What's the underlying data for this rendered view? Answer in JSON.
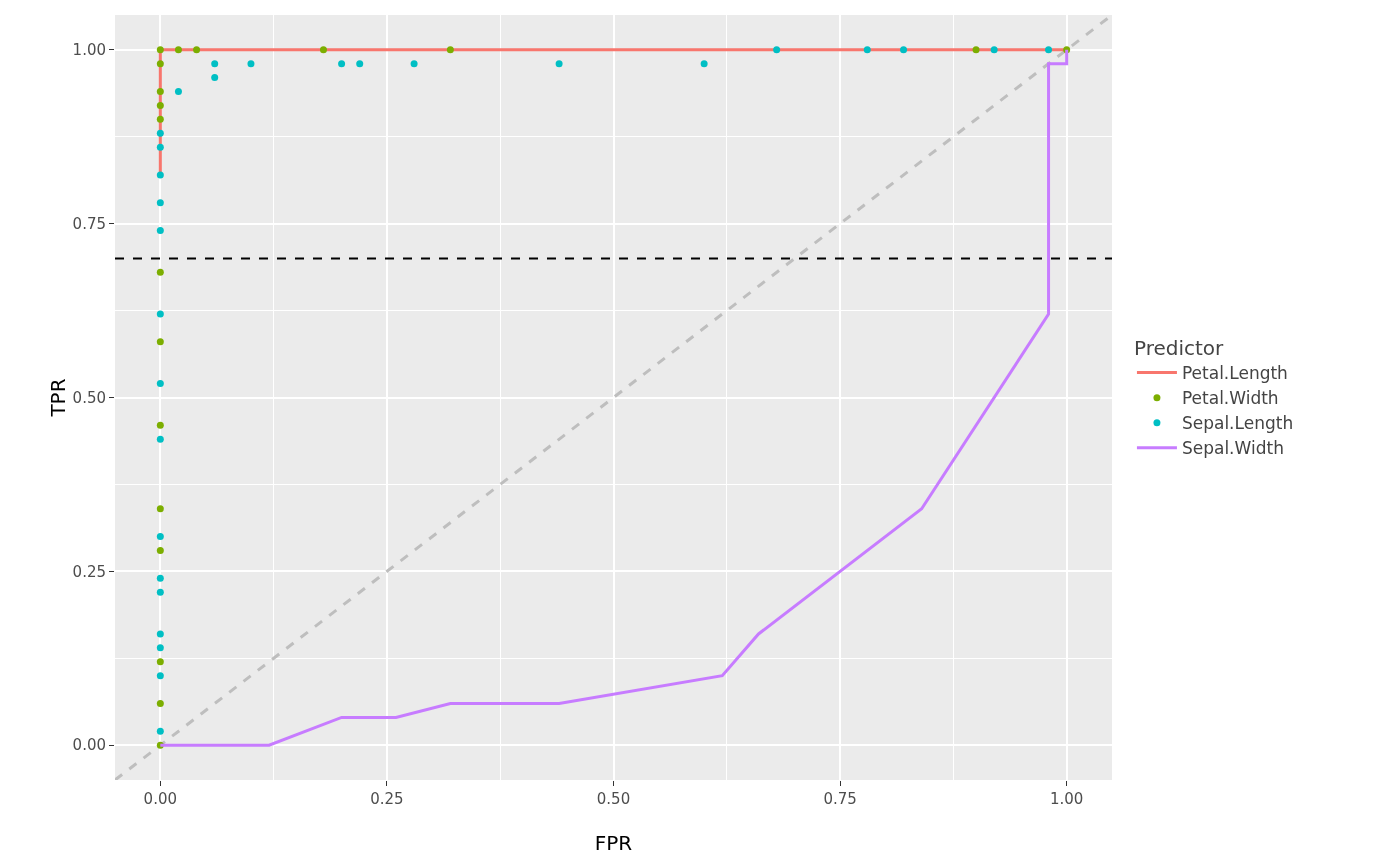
{
  "chart_data": {
    "type": "line",
    "xlabel": "FPR",
    "ylabel": "TPR",
    "legend_title": "Predictor",
    "legend": "right",
    "grid": true,
    "xlim": [
      -0.05,
      1.05
    ],
    "ylim": [
      -0.05,
      1.05
    ],
    "xticks": [
      {
        "value": 0,
        "label": "0.00"
      },
      {
        "value": 0.25,
        "label": "0.25"
      },
      {
        "value": 0.5,
        "label": "0.50"
      },
      {
        "value": 0.75,
        "label": "0.75"
      },
      {
        "value": 1,
        "label": "1.00"
      }
    ],
    "yticks": [
      {
        "value": 0,
        "label": "0.00"
      },
      {
        "value": 0.25,
        "label": "0.25"
      },
      {
        "value": 0.5,
        "label": "0.50"
      },
      {
        "value": 0.75,
        "label": "0.75"
      },
      {
        "value": 1,
        "label": "1.00"
      }
    ],
    "ref_lines": [
      {
        "axis": "y",
        "value": 0.7,
        "color": "#000000",
        "line_style": "dashed"
      }
    ],
    "series": [
      {
        "type": "line",
        "x": [
          -0.05,
          1.05
        ],
        "values": [
          -0.05,
          1.05
        ],
        "color": "#bebebe",
        "line_style": "dashed"
      },
      {
        "name": "Petal.Length",
        "type": "line",
        "color": "#f8766d",
        "line_style": "solid",
        "x": [
          0,
          0,
          1
        ],
        "values": [
          0.82,
          1,
          1
        ]
      },
      {
        "name": "Petal.Width",
        "type": "scatter",
        "marker": "circle",
        "color": "#7cae00",
        "x": [
          0,
          0,
          0,
          0,
          0,
          0,
          0,
          0,
          0,
          0,
          0,
          0,
          0,
          0.02,
          0.04,
          0.18,
          0.32,
          0.9,
          1
        ],
        "values": [
          0,
          0.06,
          0.12,
          0.28,
          0.34,
          0.46,
          0.58,
          0.68,
          0.9,
          0.92,
          0.94,
          0.98,
          1,
          1,
          1,
          1,
          1,
          1,
          1
        ]
      },
      {
        "name": "Sepal.Length",
        "type": "scatter",
        "marker": "circle",
        "color": "#00bfc4",
        "x": [
          0,
          0,
          0,
          0,
          0,
          0,
          0,
          0,
          0,
          0,
          0,
          0,
          0,
          0,
          0,
          0.02,
          0.06,
          0.06,
          0.1,
          0.2,
          0.22,
          0.28,
          0.44,
          0.6,
          0.68,
          0.78,
          0.82,
          0.92,
          0.98
        ],
        "values": [
          0.02,
          0.1,
          0.14,
          0.16,
          0.22,
          0.24,
          0.3,
          0.44,
          0.52,
          0.62,
          0.74,
          0.78,
          0.82,
          0.86,
          0.88,
          0.94,
          0.96,
          0.98,
          0.98,
          0.98,
          0.98,
          0.98,
          0.98,
          0.98,
          1,
          1,
          1,
          1,
          1
        ]
      },
      {
        "name": "Sepal.Width",
        "type": "line",
        "color": "#c77cff",
        "line_style": "solid",
        "x": [
          0,
          0.12,
          0.2,
          0.26,
          0.32,
          0.44,
          0.62,
          0.66,
          0.84,
          0.98,
          0.98,
          1,
          1
        ],
        "values": [
          0,
          0,
          0.04,
          0.04,
          0.06,
          0.06,
          0.1,
          0.16,
          0.34,
          0.62,
          0.98,
          0.98,
          1
        ]
      }
    ]
  }
}
